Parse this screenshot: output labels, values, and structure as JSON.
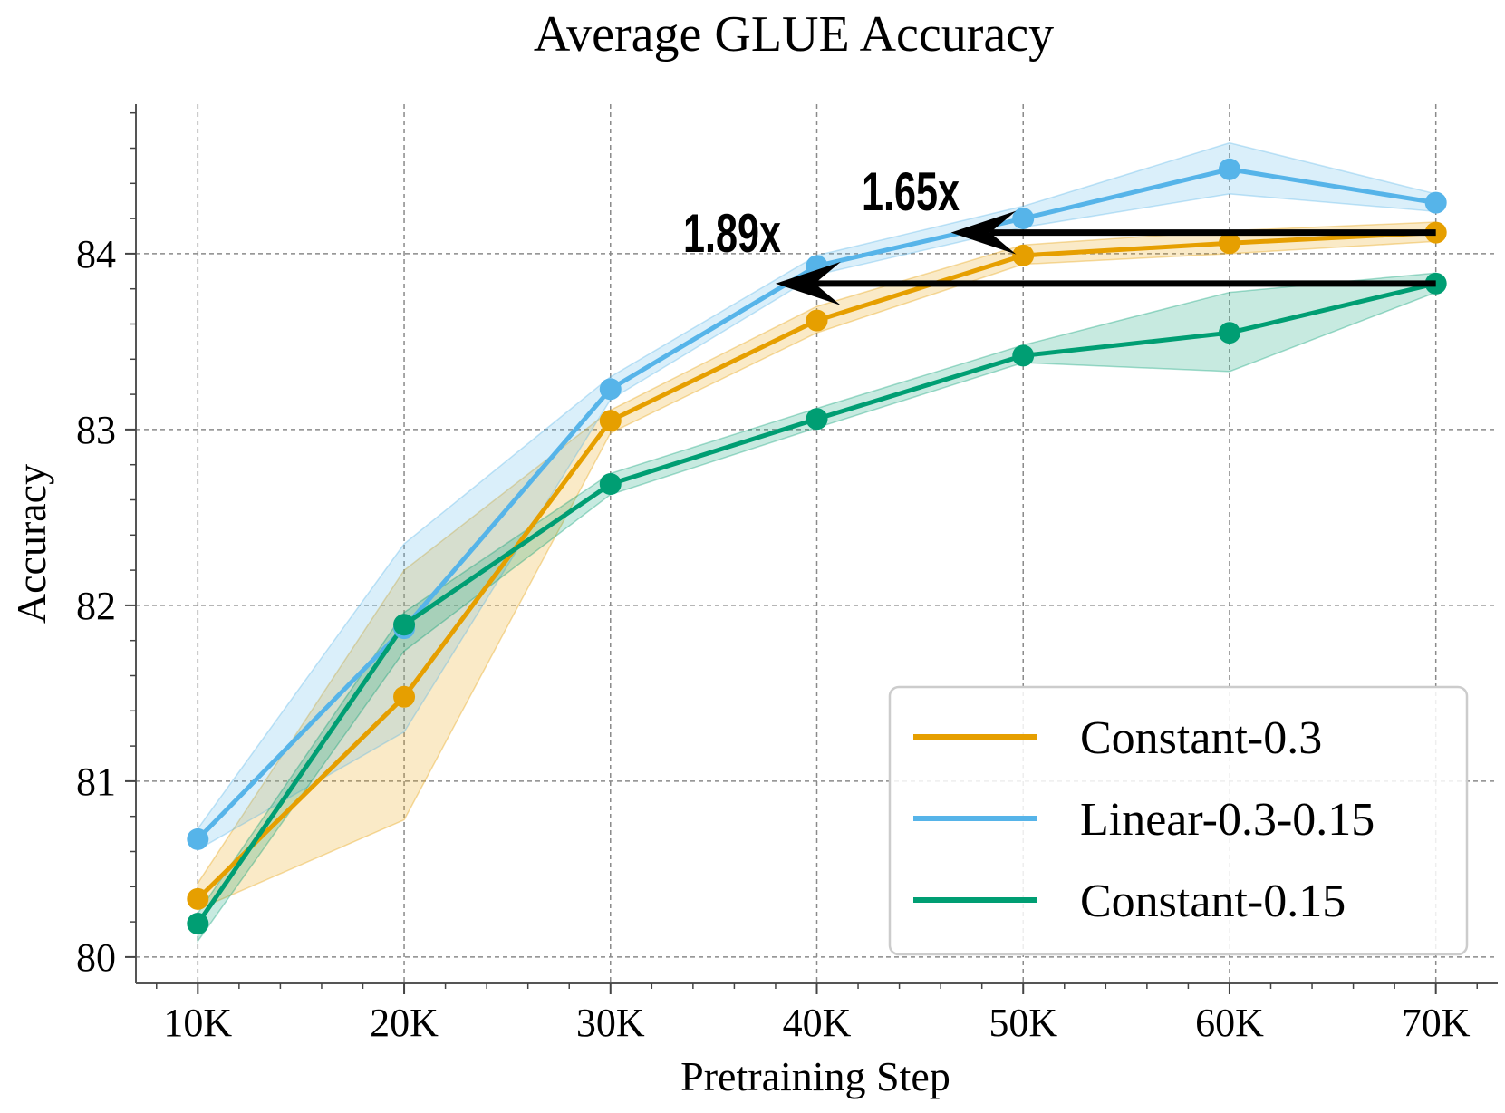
{
  "chart_data": {
    "type": "line",
    "title": "Average GLUE Accuracy",
    "xlabel": "Pretraining Step",
    "ylabel": "Accuracy",
    "x": [
      10,
      20,
      30,
      40,
      50,
      60,
      70
    ],
    "x_tick_labels": [
      "10K",
      "20K",
      "30K",
      "40K",
      "50K",
      "60K",
      "70K"
    ],
    "y_ticks": [
      80,
      81,
      82,
      83,
      84
    ],
    "y_tick_labels": [
      "80",
      "81",
      "82",
      "83",
      "84"
    ],
    "xlim": [
      7,
      73
    ],
    "ylim": [
      79.85,
      84.85
    ],
    "grid": true,
    "legend_position": "lower-right",
    "series": [
      {
        "name": "Constant-0.3",
        "color": "#E69F00",
        "values": [
          80.33,
          81.48,
          83.05,
          83.62,
          83.99,
          84.06,
          84.12
        ],
        "lower": [
          80.27,
          80.78,
          82.98,
          83.55,
          83.94,
          84.0,
          84.07
        ],
        "upper": [
          80.42,
          82.2,
          83.11,
          83.7,
          84.05,
          84.13,
          84.18
        ]
      },
      {
        "name": "Linear-0.3-0.15",
        "color": "#56B4E9",
        "values": [
          80.67,
          81.87,
          83.23,
          83.93,
          84.2,
          84.48,
          84.29
        ],
        "lower": [
          80.61,
          81.28,
          83.17,
          83.88,
          84.15,
          84.34,
          84.24
        ],
        "upper": [
          80.73,
          82.35,
          83.3,
          83.99,
          84.27,
          84.63,
          84.34
        ]
      },
      {
        "name": "Constant-0.15",
        "color": "#009E73",
        "values": [
          80.19,
          81.89,
          82.69,
          83.06,
          83.42,
          83.55,
          83.83
        ],
        "lower": [
          80.09,
          81.74,
          82.63,
          83.01,
          83.38,
          83.33,
          83.78
        ],
        "upper": [
          80.25,
          81.96,
          82.75,
          83.12,
          83.48,
          83.78,
          83.89
        ]
      }
    ],
    "annotations": [
      {
        "text": "1.89x",
        "arrow_from": [
          70,
          83.83
        ],
        "arrow_to": [
          38,
          83.83
        ]
      },
      {
        "text": "1.65x",
        "arrow_from": [
          70,
          84.12
        ],
        "arrow_to": [
          46.5,
          84.12
        ]
      }
    ]
  }
}
